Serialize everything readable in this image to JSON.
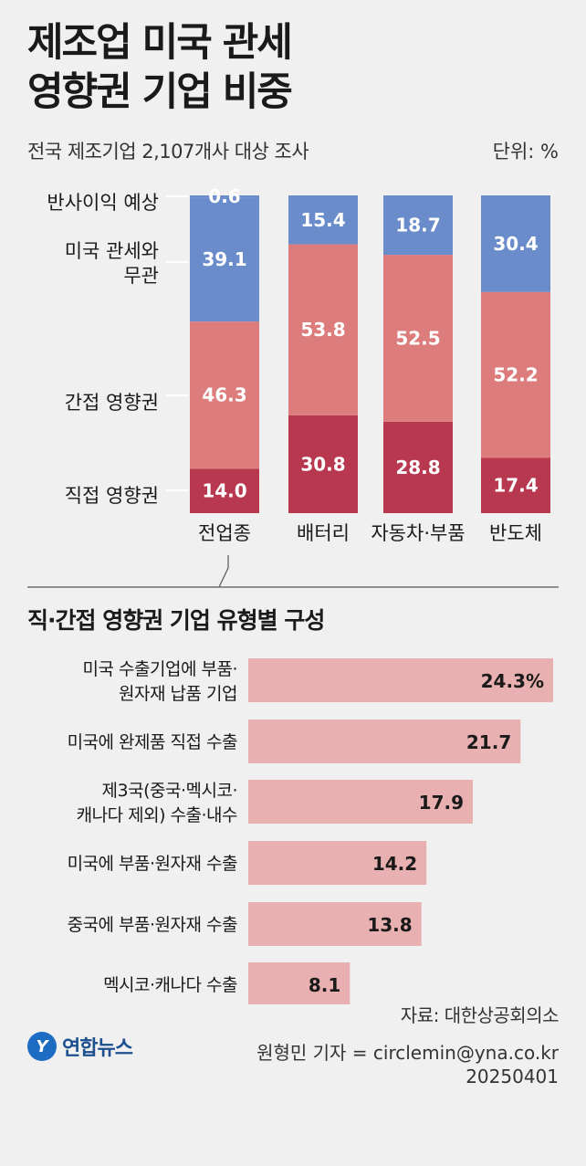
{
  "title_line1": "제조업 미국 관세",
  "title_line2": "영향권 기업 비중",
  "subtitle": "전국 제조기업 2,107개사 대상 조사",
  "unit": "단위: %",
  "section2_title": "직·간접 영향권 기업 유형별 구성",
  "source": "자료: 대한상공회의소",
  "logo_text": "연합뉴스",
  "byline": "원형민 기자 = circlemin@yna.co.kr",
  "date": "20250401",
  "colors": {
    "profit": "#6a8ccb",
    "unrelated": "#6a8ccb",
    "indirect": "#dc7c7c",
    "direct": "#b8384f",
    "hbar": "#e8b0b0"
  },
  "chart_data": [
    {
      "type": "bar",
      "stacked": true,
      "categories": [
        "전업종",
        "배터리",
        "자동차·부품",
        "반도체"
      ],
      "series": [
        {
          "name": "직접 영향권",
          "values": [
            14.0,
            30.8,
            28.8,
            17.4
          ]
        },
        {
          "name": "간접 영향권",
          "values": [
            46.3,
            53.8,
            52.5,
            52.2
          ]
        },
        {
          "name": "미국 관세와 무관",
          "values": [
            39.1,
            15.4,
            18.7,
            30.4
          ]
        },
        {
          "name": "반사이익 예상",
          "values": [
            0.6,
            null,
            null,
            null
          ]
        }
      ],
      "value_labels": [
        [
          "14.0",
          "46.3",
          "39.1",
          "0.6"
        ],
        [
          "30.8",
          "53.8",
          "15.4"
        ],
        [
          "28.8",
          "52.5",
          "18.7"
        ],
        [
          "17.4",
          "52.2",
          "30.4"
        ]
      ],
      "legend_labels": [
        "반사이익 예상",
        "미국 관세와\n무관",
        "간접 영향권",
        "직접 영향권"
      ]
    },
    {
      "type": "bar",
      "orientation": "horizontal",
      "categories": [
        "미국 수출기업에 부품·\n원자재 납품 기업",
        "미국에 완제품 직접 수출",
        "제3국(중국·멕시코·\n캐나다 제외) 수출·내수",
        "미국에 부품·원자재 수출",
        "중국에 부품·원자재 수출",
        "멕시코·캐나다 수출"
      ],
      "values": [
        24.3,
        21.7,
        17.9,
        14.2,
        13.8,
        8.1
      ],
      "value_labels": [
        "24.3%",
        "21.7",
        "17.9",
        "14.2",
        "13.8",
        "8.1"
      ]
    }
  ]
}
